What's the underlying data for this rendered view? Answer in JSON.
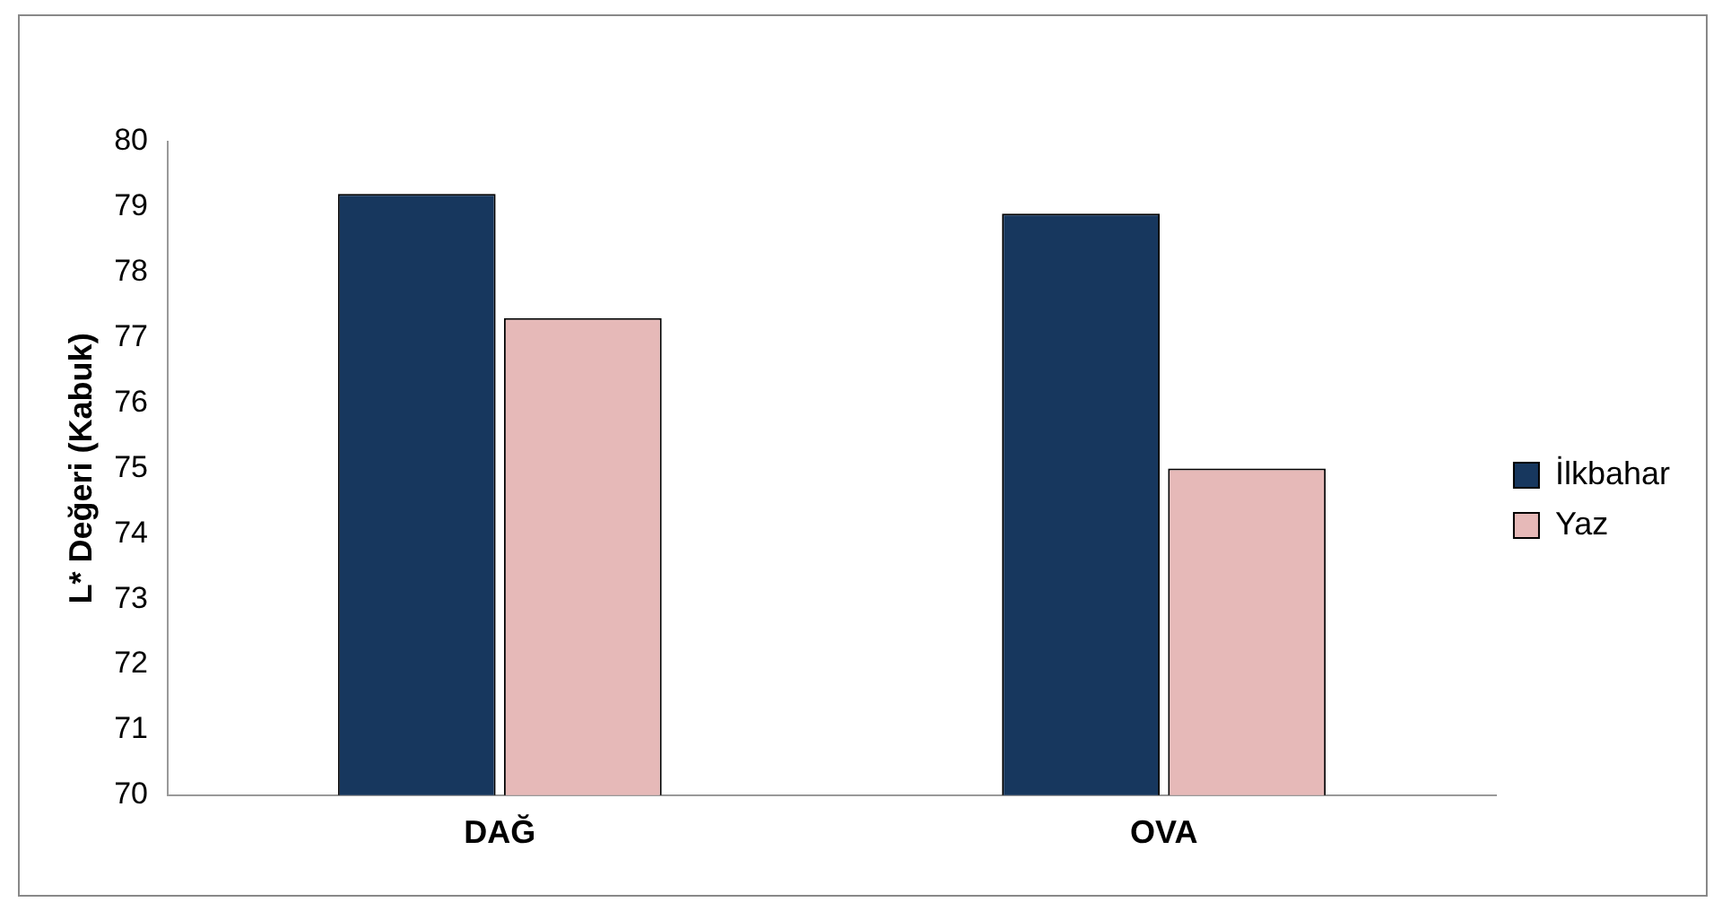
{
  "chart_data": {
    "type": "bar",
    "ylabel": "L* Değeri (Kabuk)",
    "categories": [
      "DAĞ",
      "OVA"
    ],
    "series": [
      {
        "name": "İlkbahar",
        "color": "#17375e",
        "values": [
          79.2,
          78.9
        ]
      },
      {
        "name": "Yaz",
        "color": "#e6b9b8",
        "values": [
          77.3,
          75.0
        ]
      }
    ],
    "ylim": [
      70,
      80
    ],
    "yticks": [
      70,
      71,
      72,
      73,
      74,
      75,
      76,
      77,
      78,
      79,
      80
    ],
    "grid": false,
    "legend": "right"
  }
}
